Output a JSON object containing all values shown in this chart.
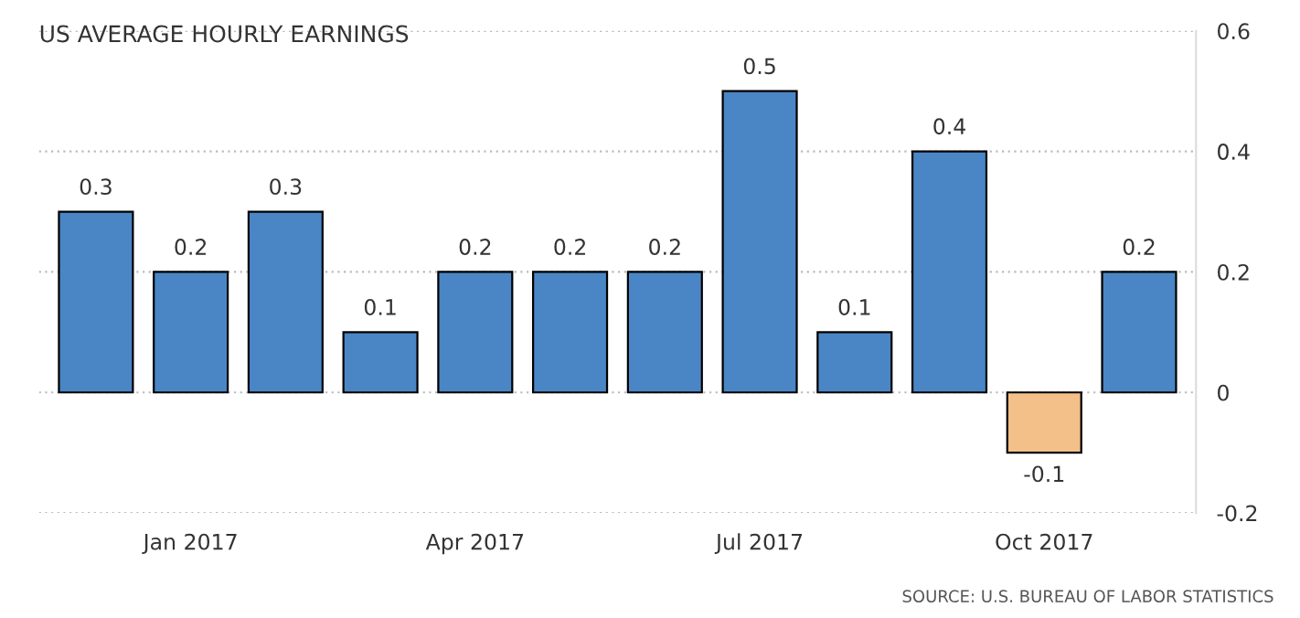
{
  "chart_data": {
    "type": "bar",
    "title": "US AVERAGE HOURLY EARNINGS",
    "categories": [
      null,
      "Jan 2017",
      null,
      null,
      "Apr 2017",
      null,
      null,
      "Jul 2017",
      null,
      null,
      "Oct 2017",
      null
    ],
    "values": [
      0.3,
      0.2,
      0.3,
      0.1,
      0.2,
      0.2,
      0.2,
      0.5,
      0.1,
      0.4,
      -0.1,
      0.2
    ],
    "colors": [
      "#4a86c5",
      "#4a86c5",
      "#4a86c5",
      "#4a86c5",
      "#4a86c5",
      "#4a86c5",
      "#4a86c5",
      "#4a86c5",
      "#4a86c5",
      "#4a86c5",
      "#f3c08a",
      "#4a86c5"
    ],
    "ylim": [
      -0.2,
      0.6
    ],
    "yticks": [
      -0.2,
      0,
      0.2,
      0.4,
      0.6
    ],
    "grid": "y",
    "data_labels": true,
    "legend": false,
    "annotations": [
      "SOURCE: U.S. BUREAU OF LABOR STATISTICS"
    ]
  }
}
